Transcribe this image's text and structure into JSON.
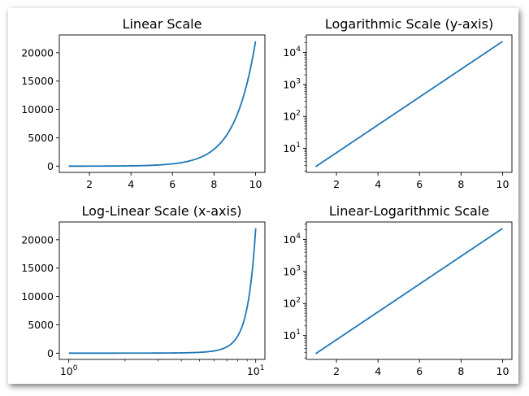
{
  "figure": {
    "background": "#ffffff",
    "line_color": "#1f77b4"
  },
  "chart_data": [
    {
      "type": "line",
      "title": "Linear Scale",
      "xlabel": "",
      "ylabel": "",
      "xscale": "linear",
      "yscale": "linear",
      "xlim": [
        0.55,
        10.45
      ],
      "ylim": [
        -1100,
        23130
      ],
      "grid": false,
      "function": "y = exp(x)",
      "x": [
        1,
        2,
        3,
        4,
        5,
        6,
        7,
        8,
        9,
        10
      ],
      "y": [
        2.72,
        7.39,
        20.09,
        54.6,
        148.41,
        403.43,
        1096.63,
        2980.96,
        8103.08,
        22026.47
      ],
      "xticks": [
        "2",
        "4",
        "6",
        "8",
        "10"
      ],
      "yticks": [
        "0",
        "5000",
        "10000",
        "15000",
        "20000"
      ]
    },
    {
      "type": "line",
      "title": "Logarithmic Scale (y-axis)",
      "xlabel": "",
      "ylabel": "",
      "xscale": "linear",
      "yscale": "log",
      "xlim": [
        0.55,
        10.45
      ],
      "ylim": [
        1.8,
        35000
      ],
      "grid": false,
      "function": "y = exp(x)",
      "x": [
        1,
        2,
        3,
        4,
        5,
        6,
        7,
        8,
        9,
        10
      ],
      "y": [
        2.72,
        7.39,
        20.09,
        54.6,
        148.41,
        403.43,
        1096.63,
        2980.96,
        8103.08,
        22026.47
      ],
      "xticks": [
        "2",
        "4",
        "6",
        "8",
        "10"
      ],
      "yticks": [
        {
          "base": "10",
          "exp": "1"
        },
        {
          "base": "10",
          "exp": "2"
        },
        {
          "base": "10",
          "exp": "3"
        },
        {
          "base": "10",
          "exp": "4"
        }
      ]
    },
    {
      "type": "line",
      "title": "Log-Linear Scale (x-axis)",
      "xlabel": "",
      "ylabel": "",
      "xscale": "log",
      "yscale": "linear",
      "xlim": [
        0.89,
        11.2
      ],
      "ylim": [
        -1100,
        23130
      ],
      "grid": false,
      "function": "y = exp(x)",
      "x": [
        1,
        2,
        3,
        4,
        5,
        6,
        7,
        8,
        9,
        10
      ],
      "y": [
        2.72,
        7.39,
        20.09,
        54.6,
        148.41,
        403.43,
        1096.63,
        2980.96,
        8103.08,
        22026.47
      ],
      "xticks": [
        {
          "base": "10",
          "exp": "0"
        },
        {
          "base": "10",
          "exp": "1"
        }
      ],
      "yticks": [
        "0",
        "5000",
        "10000",
        "15000",
        "20000"
      ]
    },
    {
      "type": "line",
      "title": "Linear-Logarithmic Scale",
      "xlabel": "",
      "ylabel": "",
      "xscale": "linear",
      "yscale": "log",
      "xlim": [
        0.55,
        10.45
      ],
      "ylim": [
        1.8,
        35000
      ],
      "grid": false,
      "function": "y = exp(x)",
      "x": [
        1,
        2,
        3,
        4,
        5,
        6,
        7,
        8,
        9,
        10
      ],
      "y": [
        2.72,
        7.39,
        20.09,
        54.6,
        148.41,
        403.43,
        1096.63,
        2980.96,
        8103.08,
        22026.47
      ],
      "xticks": [
        "2",
        "4",
        "6",
        "8",
        "10"
      ],
      "yticks": [
        {
          "base": "10",
          "exp": "1"
        },
        {
          "base": "10",
          "exp": "2"
        },
        {
          "base": "10",
          "exp": "3"
        },
        {
          "base": "10",
          "exp": "4"
        }
      ]
    }
  ]
}
